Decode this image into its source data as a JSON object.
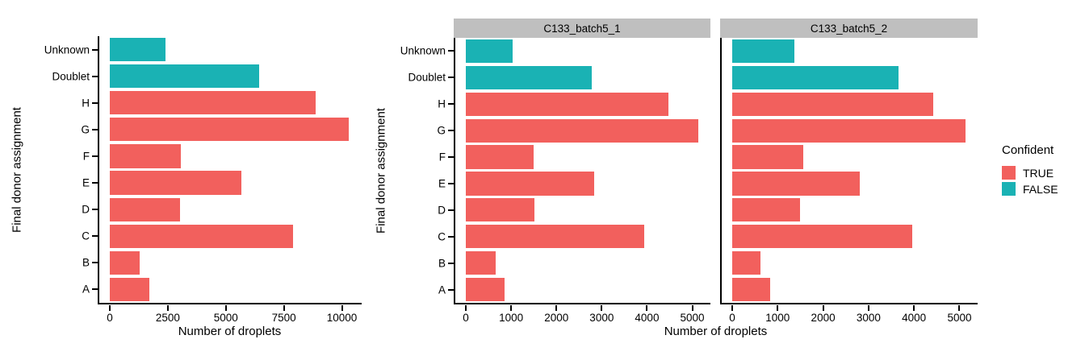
{
  "axis_titles": {
    "x": "Number of droplets",
    "y": "Final donor assignment"
  },
  "colors": {
    "confident_true": "#F2605D",
    "confident_false": "#1AB2B4",
    "strip_background": "#BFBFBF",
    "strip_text": "#000000",
    "axis_line": "#000000",
    "text": "#000000",
    "background": "#FFFFFF"
  },
  "legend": {
    "title": "Confident",
    "items": [
      {
        "label": "TRUE",
        "swatch": "confident_true"
      },
      {
        "label": "FALSE",
        "swatch": "confident_false"
      }
    ]
  },
  "facets": {
    "strip_labels": [
      "C133_batch5_1",
      "C133_batch5_2"
    ]
  },
  "chart_data": [
    {
      "id": "overall",
      "type": "bar",
      "orientation": "horizontal",
      "facet_label": null,
      "title": "",
      "xlabel": "Number of droplets",
      "ylabel": "Final donor assignment",
      "categories": [
        "Unknown",
        "Doublet",
        "H",
        "G",
        "F",
        "E",
        "D",
        "C",
        "B",
        "A"
      ],
      "values": [
        2400,
        6440,
        8880,
        10290,
        3070,
        5660,
        3020,
        7900,
        1280,
        1710
      ],
      "series_flag_confident": [
        false,
        false,
        true,
        true,
        true,
        true,
        true,
        true,
        true,
        true
      ],
      "xticks": [
        0,
        2500,
        5000,
        7500,
        10000
      ],
      "xlim": [
        0,
        10850
      ],
      "grid": false,
      "legend_position": "none"
    },
    {
      "id": "facet_C133_batch5_1",
      "type": "bar",
      "orientation": "horizontal",
      "facet_label": "C133_batch5_1",
      "title": "C133_batch5_1",
      "xlabel": "Number of droplets",
      "ylabel": "Final donor assignment",
      "categories": [
        "Unknown",
        "Doublet",
        "H",
        "G",
        "F",
        "E",
        "D",
        "C",
        "B",
        "A"
      ],
      "values": [
        1030,
        2780,
        4470,
        5130,
        1490,
        2830,
        1520,
        3940,
        660,
        860
      ],
      "series_flag_confident": [
        false,
        false,
        true,
        true,
        true,
        true,
        true,
        true,
        true,
        true
      ],
      "xticks": [
        0,
        1000,
        2000,
        3000,
        4000,
        5000
      ],
      "xlim": [
        0,
        5400
      ],
      "grid": false,
      "legend_position": "right"
    },
    {
      "id": "facet_C133_batch5_2",
      "type": "bar",
      "orientation": "horizontal",
      "facet_label": "C133_batch5_2",
      "title": "C133_batch5_2",
      "xlabel": "Number of droplets",
      "ylabel": "Final donor assignment",
      "categories": [
        "Unknown",
        "Doublet",
        "H",
        "G",
        "F",
        "E",
        "D",
        "C",
        "B",
        "A"
      ],
      "values": [
        1360,
        3660,
        4420,
        5130,
        1570,
        2800,
        1500,
        3960,
        620,
        840
      ],
      "series_flag_confident": [
        false,
        false,
        true,
        true,
        true,
        true,
        true,
        true,
        true,
        true
      ],
      "xticks": [
        0,
        1000,
        2000,
        3000,
        4000,
        5000
      ],
      "xlim": [
        0,
        5400
      ],
      "grid": false,
      "legend_position": "right"
    }
  ]
}
